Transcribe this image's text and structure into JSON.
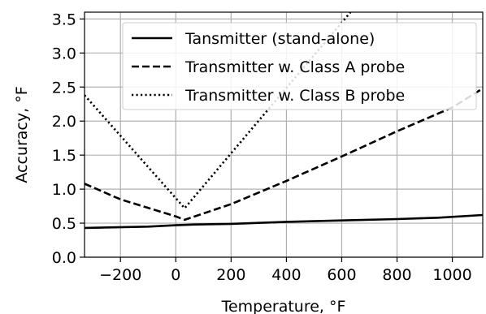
{
  "chart_data": {
    "type": "line",
    "title": "",
    "xlabel": "Temperature, °F",
    "ylabel": "Accuracy, °F",
    "xlim": [
      -330,
      1110
    ],
    "ylim": [
      0.0,
      3.6
    ],
    "xticks": [
      -200,
      0,
      200,
      400,
      600,
      800,
      1000
    ],
    "xtick_labels": [
      "−200",
      "0",
      "200",
      "400",
      "600",
      "800",
      "1000"
    ],
    "yticks": [
      0.0,
      0.5,
      1.0,
      1.5,
      2.0,
      2.5,
      3.0,
      3.5
    ],
    "ytick_labels": [
      "0.0",
      "0.5",
      "1.0",
      "1.5",
      "2.0",
      "2.5",
      "3.0",
      "3.5"
    ],
    "grid": true,
    "legend_position": "top-right",
    "series": [
      {
        "name": "Tansmitter (stand-alone)",
        "line_style": "solid",
        "color": "#000000",
        "x": [
          -330,
          -100,
          0,
          70,
          200,
          400,
          600,
          800,
          950,
          1110
        ],
        "y": [
          0.43,
          0.45,
          0.47,
          0.48,
          0.49,
          0.52,
          0.54,
          0.56,
          0.58,
          0.62
        ]
      },
      {
        "name": "Transmitter w. Class A probe",
        "line_style": "dashed",
        "color": "#000000",
        "x": [
          -330,
          -200,
          0,
          32,
          200,
          400,
          600,
          800,
          1000,
          1110
        ],
        "y": [
          1.08,
          0.85,
          0.6,
          0.55,
          0.78,
          1.12,
          1.48,
          1.85,
          2.2,
          2.48
        ]
      },
      {
        "name": "Transmitter w. Class B probe",
        "line_style": "dotted",
        "color": "#000000",
        "x": [
          -330,
          32,
          632
        ],
        "y": [
          2.38,
          0.72,
          3.6
        ]
      }
    ]
  }
}
